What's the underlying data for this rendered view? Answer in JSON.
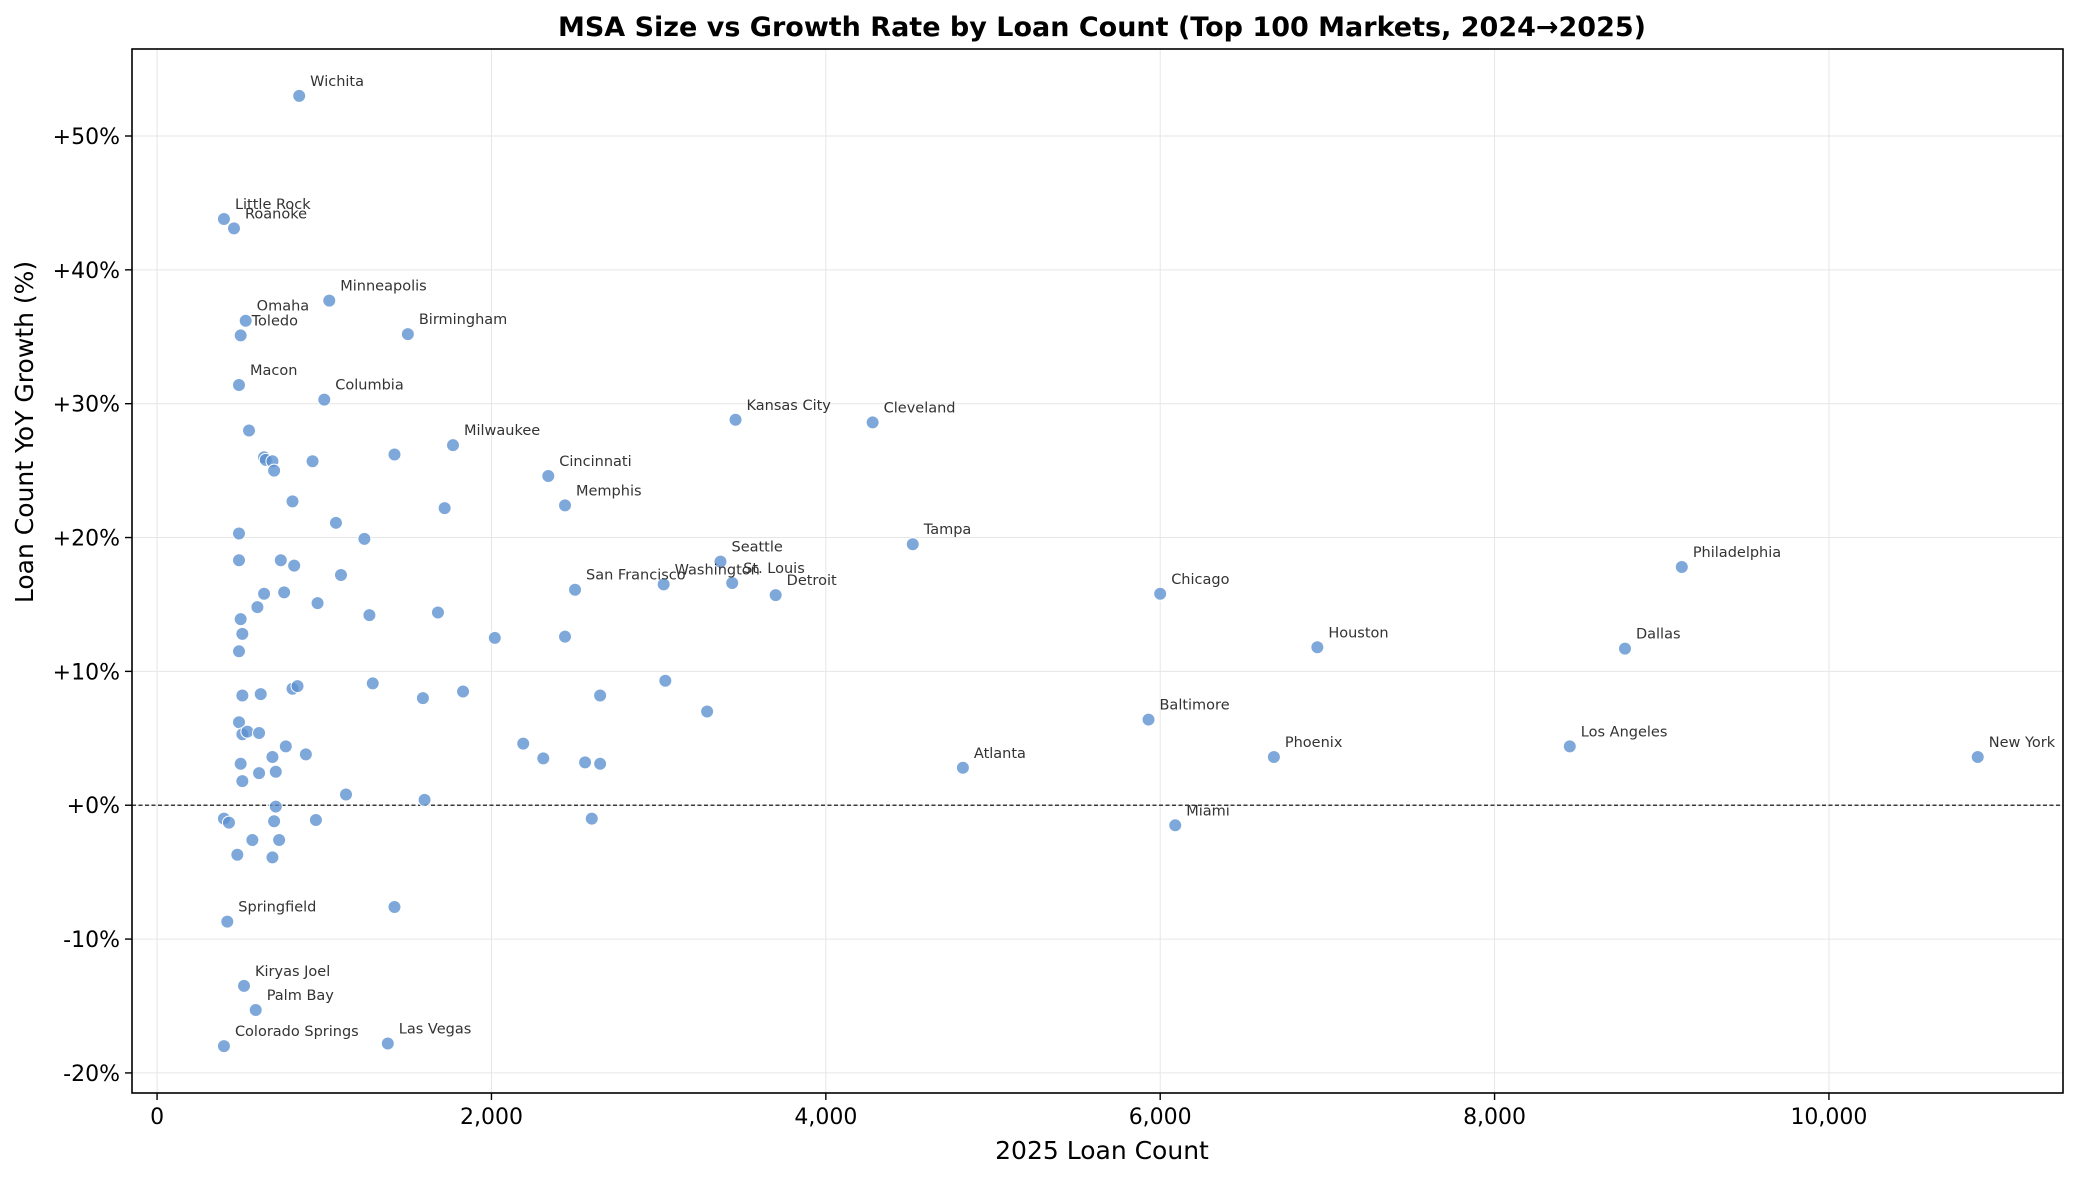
{
  "chart_data": {
    "type": "scatter",
    "title": "MSA Size vs Growth Rate by Loan Count (Top 100 Markets, 2024→2025)",
    "xlabel": "2025 Loan Count",
    "ylabel": "Loan Count YoY Growth (%)",
    "xlim": [
      -150,
      11400
    ],
    "ylim": [
      -21.5,
      56.5
    ],
    "xticks": [
      0,
      2000,
      4000,
      6000,
      8000,
      10000
    ],
    "xtick_labels": [
      "0",
      "2,000",
      "4,000",
      "6,000",
      "8,000",
      "10,000"
    ],
    "yticks": [
      -20,
      -10,
      0,
      10,
      20,
      30,
      40,
      50
    ],
    "ytick_labels": [
      "-20%",
      "-10%",
      "+0%",
      "+10%",
      "+20%",
      "+30%",
      "+40%",
      "+50%"
    ],
    "grid": true,
    "reference_line_y": 0,
    "color": "#5b8fcf",
    "points": [
      {
        "x": 850,
        "y": 53.0,
        "label": "Wichita"
      },
      {
        "x": 400,
        "y": 43.8,
        "label": "Little Rock"
      },
      {
        "x": 460,
        "y": 43.1,
        "label": "Roanoke"
      },
      {
        "x": 1030,
        "y": 37.7,
        "label": "Minneapolis"
      },
      {
        "x": 530,
        "y": 36.2,
        "label": "Omaha"
      },
      {
        "x": 500,
        "y": 35.1,
        "label": "Toledo"
      },
      {
        "x": 1500,
        "y": 35.2,
        "label": "Birmingham"
      },
      {
        "x": 490,
        "y": 31.4,
        "label": "Macon"
      },
      {
        "x": 1000,
        "y": 30.3,
        "label": "Columbia"
      },
      {
        "x": 3460,
        "y": 28.8,
        "label": "Kansas City"
      },
      {
        "x": 4280,
        "y": 28.6,
        "label": "Cleveland"
      },
      {
        "x": 1770,
        "y": 26.9,
        "label": "Milwaukee"
      },
      {
        "x": 2340,
        "y": 24.6,
        "label": "Cincinnati"
      },
      {
        "x": 2440,
        "y": 22.4,
        "label": "Memphis"
      },
      {
        "x": 4520,
        "y": 19.5,
        "label": "Tampa"
      },
      {
        "x": 3370,
        "y": 18.2,
        "label": "Seattle"
      },
      {
        "x": 9120,
        "y": 17.8,
        "label": "Philadelphia"
      },
      {
        "x": 2500,
        "y": 16.1,
        "label": "San Francisco"
      },
      {
        "x": 3030,
        "y": 16.5,
        "label": "Washington"
      },
      {
        "x": 3440,
        "y": 16.6,
        "label": "St. Louis"
      },
      {
        "x": 3700,
        "y": 15.7,
        "label": "Detroit"
      },
      {
        "x": 6000,
        "y": 15.8,
        "label": "Chicago"
      },
      {
        "x": 6940,
        "y": 11.8,
        "label": "Houston"
      },
      {
        "x": 8780,
        "y": 11.7,
        "label": "Dallas"
      },
      {
        "x": 5930,
        "y": 6.4,
        "label": "Baltimore"
      },
      {
        "x": 8450,
        "y": 4.4,
        "label": "Los Angeles"
      },
      {
        "x": 10890,
        "y": 3.6,
        "label": "New York"
      },
      {
        "x": 6680,
        "y": 3.6,
        "label": "Phoenix"
      },
      {
        "x": 4820,
        "y": 2.8,
        "label": "Atlanta"
      },
      {
        "x": 6090,
        "y": -1.5,
        "label": "Miami"
      },
      {
        "x": 420,
        "y": -8.7,
        "label": "Springfield"
      },
      {
        "x": 520,
        "y": -13.5,
        "label": "Kiryas Joel"
      },
      {
        "x": 590,
        "y": -15.3,
        "label": "Palm Bay"
      },
      {
        "x": 400,
        "y": -18.0,
        "label": "Colorado Springs"
      },
      {
        "x": 1380,
        "y": -17.8,
        "label": "Las Vegas"
      },
      {
        "x": 550,
        "y": 28.0
      },
      {
        "x": 640,
        "y": 26.0
      },
      {
        "x": 650,
        "y": 25.8
      },
      {
        "x": 690,
        "y": 25.7
      },
      {
        "x": 700,
        "y": 25.0
      },
      {
        "x": 930,
        "y": 25.7
      },
      {
        "x": 1420,
        "y": 26.2
      },
      {
        "x": 810,
        "y": 22.7
      },
      {
        "x": 1070,
        "y": 21.1
      },
      {
        "x": 1720,
        "y": 22.2
      },
      {
        "x": 490,
        "y": 20.3
      },
      {
        "x": 1240,
        "y": 19.9
      },
      {
        "x": 490,
        "y": 18.3
      },
      {
        "x": 740,
        "y": 18.3
      },
      {
        "x": 820,
        "y": 17.9
      },
      {
        "x": 1100,
        "y": 17.2
      },
      {
        "x": 640,
        "y": 15.8
      },
      {
        "x": 760,
        "y": 15.9
      },
      {
        "x": 600,
        "y": 14.8
      },
      {
        "x": 960,
        "y": 15.1
      },
      {
        "x": 500,
        "y": 13.9
      },
      {
        "x": 1270,
        "y": 14.2
      },
      {
        "x": 1680,
        "y": 14.4
      },
      {
        "x": 510,
        "y": 12.8
      },
      {
        "x": 2020,
        "y": 12.5
      },
      {
        "x": 2440,
        "y": 12.6
      },
      {
        "x": 490,
        "y": 11.5
      },
      {
        "x": 510,
        "y": 8.2
      },
      {
        "x": 620,
        "y": 8.3
      },
      {
        "x": 810,
        "y": 8.7
      },
      {
        "x": 840,
        "y": 8.9
      },
      {
        "x": 1290,
        "y": 9.1
      },
      {
        "x": 1590,
        "y": 8.0
      },
      {
        "x": 1830,
        "y": 8.5
      },
      {
        "x": 2650,
        "y": 8.2
      },
      {
        "x": 3040,
        "y": 9.3
      },
      {
        "x": 3290,
        "y": 7.0
      },
      {
        "x": 490,
        "y": 6.2
      },
      {
        "x": 510,
        "y": 5.3
      },
      {
        "x": 540,
        "y": 5.5
      },
      {
        "x": 610,
        "y": 5.4
      },
      {
        "x": 770,
        "y": 4.4
      },
      {
        "x": 690,
        "y": 3.6
      },
      {
        "x": 890,
        "y": 3.8
      },
      {
        "x": 2190,
        "y": 4.6
      },
      {
        "x": 2310,
        "y": 3.5
      },
      {
        "x": 2560,
        "y": 3.2
      },
      {
        "x": 2650,
        "y": 3.1
      },
      {
        "x": 500,
        "y": 3.1
      },
      {
        "x": 610,
        "y": 2.4
      },
      {
        "x": 710,
        "y": 2.5
      },
      {
        "x": 510,
        "y": 1.8
      },
      {
        "x": 1130,
        "y": 0.8
      },
      {
        "x": 1600,
        "y": 0.4
      },
      {
        "x": 710,
        "y": -0.1
      },
      {
        "x": 400,
        "y": -1.0
      },
      {
        "x": 430,
        "y": -1.3
      },
      {
        "x": 700,
        "y": -1.2
      },
      {
        "x": 950,
        "y": -1.1
      },
      {
        "x": 2600,
        "y": -1.0
      },
      {
        "x": 570,
        "y": -2.6
      },
      {
        "x": 730,
        "y": -2.6
      },
      {
        "x": 480,
        "y": -3.7
      },
      {
        "x": 690,
        "y": -3.9
      },
      {
        "x": 1420,
        "y": -7.6
      }
    ]
  }
}
